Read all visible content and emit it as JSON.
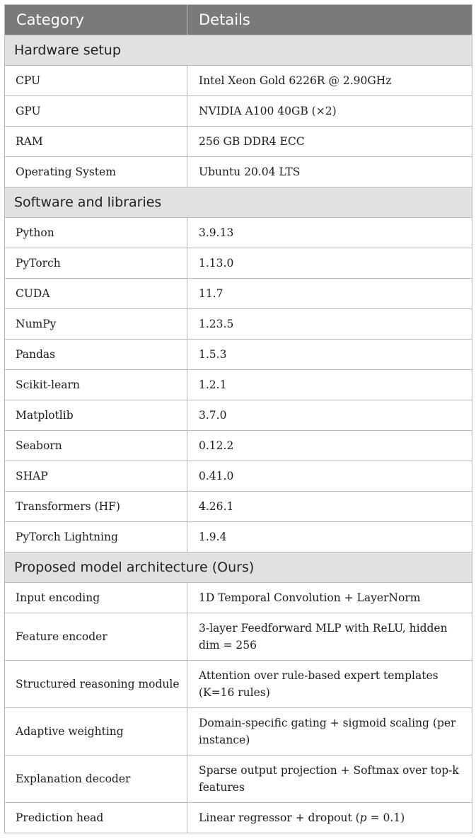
{
  "table": {
    "headers": [
      "Category",
      "Details"
    ],
    "sections": [
      {
        "title": "Hardware setup",
        "rows": [
          {
            "label": "CPU",
            "value": "Intel Xeon Gold 6226R @ 2.90GHz"
          },
          {
            "label": "GPU",
            "value": "NVIDIA A100 40GB (×2)"
          },
          {
            "label": "RAM",
            "value": "256 GB DDR4 ECC"
          },
          {
            "label": "Operating System",
            "value": "Ubuntu 20.04 LTS"
          }
        ]
      },
      {
        "title": "Software and libraries",
        "rows": [
          {
            "label": "Python",
            "value": "3.9.13"
          },
          {
            "label": "PyTorch",
            "value": "1.13.0"
          },
          {
            "label": "CUDA",
            "value": "11.7"
          },
          {
            "label": "NumPy",
            "value": "1.23.5"
          },
          {
            "label": "Pandas",
            "value": "1.5.3"
          },
          {
            "label": "Scikit-learn",
            "value": "1.2.1"
          },
          {
            "label": "Matplotlib",
            "value": "3.7.0"
          },
          {
            "label": "Seaborn",
            "value": "0.12.2"
          },
          {
            "label": "SHAP",
            "value": "0.41.0"
          },
          {
            "label": "Transformers (HF)",
            "value": "4.26.1"
          },
          {
            "label": "PyTorch Lightning",
            "value": "1.9.4"
          }
        ]
      },
      {
        "title": "Proposed model architecture (Ours)",
        "rows": [
          {
            "label": "Input encoding",
            "value": "1D Temporal Convolution + LayerNorm"
          },
          {
            "label": "Feature encoder",
            "value": "3-layer Feedforward MLP with ReLU, hidden dim = 256"
          },
          {
            "label": "Structured reasoning module",
            "value": "Attention over rule-based expert templates (K=16 rules)"
          },
          {
            "label": "Adaptive weighting",
            "value": "Domain-specific gating + sigmoid scaling (per instance)"
          },
          {
            "label": "Explanation decoder",
            "value": "Sparse output projection + Softmax over top-k features"
          },
          {
            "label": "Prediction head",
            "value_pre": "Linear regressor + dropout (",
            "value_var": "p",
            "value_post": " = 0.1)"
          }
        ]
      }
    ]
  }
}
